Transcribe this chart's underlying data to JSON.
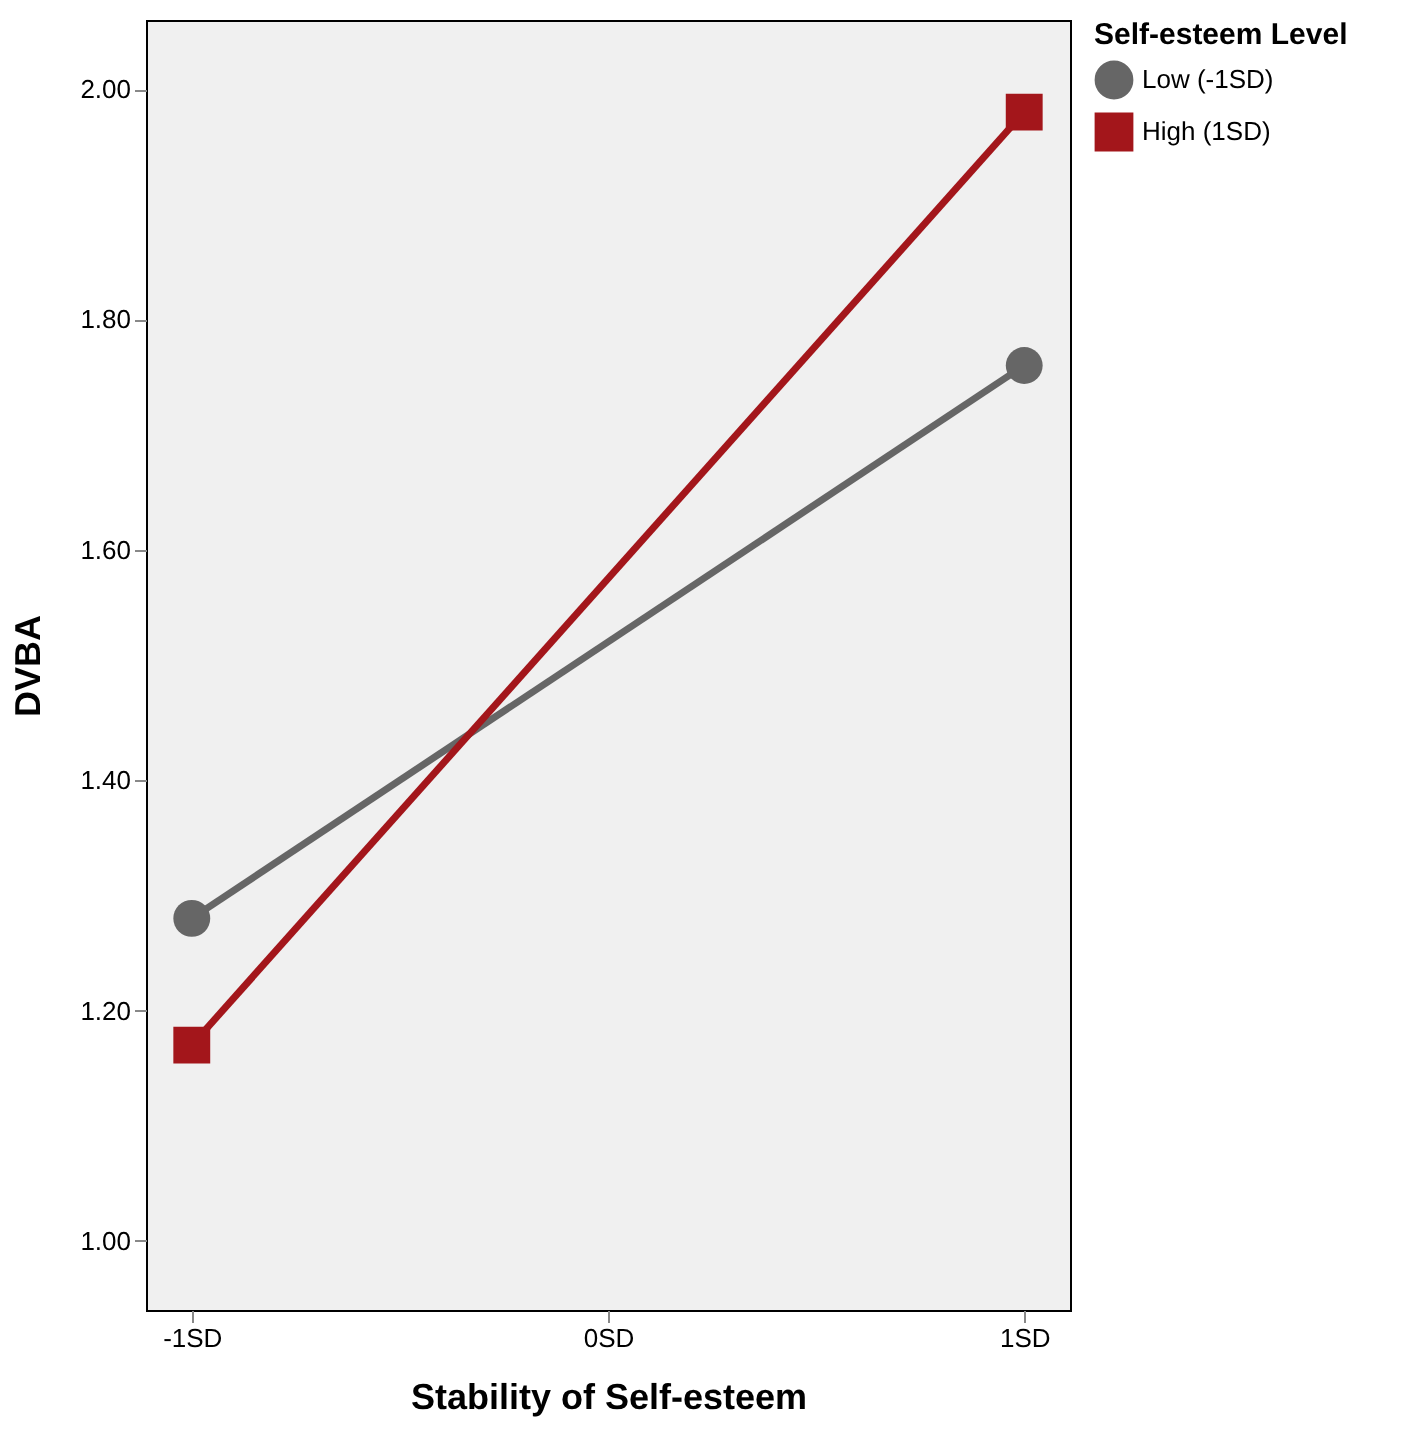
{
  "chart_data": {
    "type": "line",
    "xlabel": "Stability of Self-esteem",
    "ylabel": "DVBA",
    "legend_title": "Self-esteem Level",
    "categories": [
      "-1SD",
      "0SD",
      "1SD"
    ],
    "series": [
      {
        "name": "Low (-1SD)",
        "color": "#666666",
        "marker": "circle",
        "values": [
          1.28,
          null,
          1.76
        ]
      },
      {
        "name": "High  (1SD)",
        "color": "#a3161b",
        "marker": "square",
        "values": [
          1.17,
          null,
          1.98
        ]
      }
    ],
    "ylim": [
      0.94,
      2.06
    ],
    "yticks": [
      {
        "value": 1.0,
        "label": "1.00"
      },
      {
        "value": 1.2,
        "label": "1.20"
      },
      {
        "value": 1.4,
        "label": "1.40"
      },
      {
        "value": 1.6,
        "label": "1.60"
      },
      {
        "value": 1.8,
        "label": "1.80"
      },
      {
        "value": 2.0,
        "label": "2.00"
      }
    ],
    "grid": false,
    "legend": "top right",
    "line_style": "solid"
  }
}
